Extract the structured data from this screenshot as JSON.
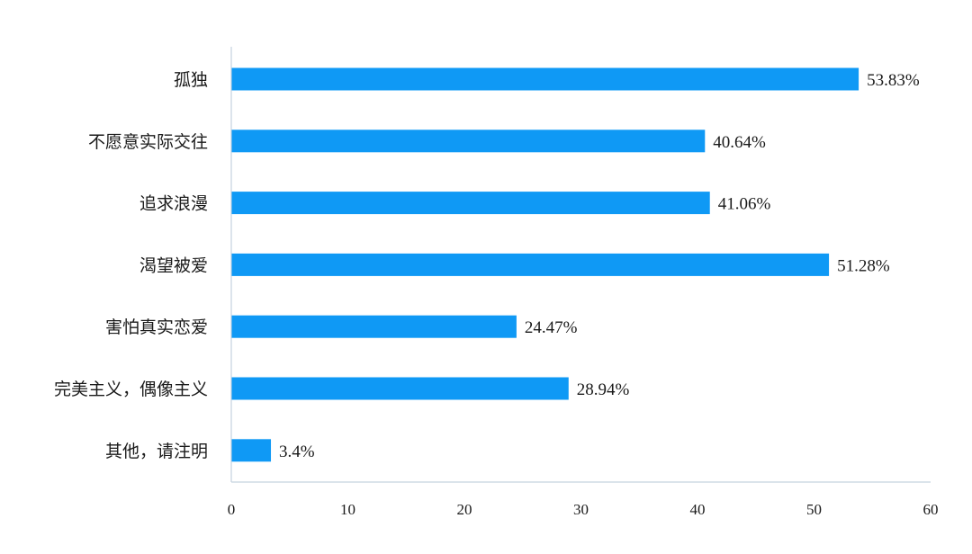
{
  "chart_data": {
    "type": "bar",
    "orientation": "horizontal",
    "categories": [
      "孤独",
      "不愿意实际交往",
      "追求浪漫",
      "渴望被爱",
      "害怕真实恋爱",
      "完美主义，偶像主义",
      "其他，请注明"
    ],
    "values": [
      53.83,
      40.64,
      41.06,
      51.28,
      24.47,
      28.94,
      3.4
    ],
    "value_labels": [
      "53.83%",
      "40.64%",
      "41.06%",
      "51.28%",
      "24.47%",
      "28.94%",
      "3.4%"
    ],
    "title": "",
    "xlabel": "",
    "ylabel": "",
    "xlim": [
      0,
      60
    ],
    "x_ticks": [
      "0",
      "10",
      "20",
      "30",
      "40",
      "50",
      "60"
    ],
    "grid": false,
    "bar_color": "#0f99f5",
    "axis_color": "#c5d3df"
  }
}
